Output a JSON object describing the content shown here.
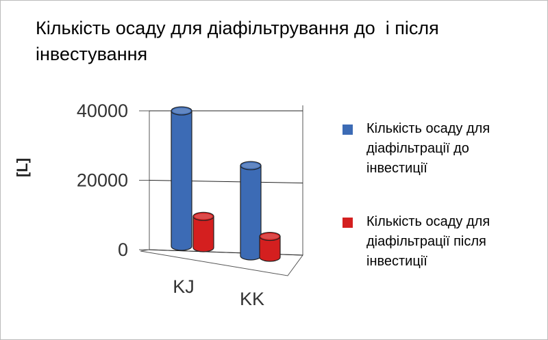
{
  "chart_data": {
    "type": "bar3d",
    "title": "Кількість осаду для діафільтрування до  і після інвестування",
    "y_label": "[L]",
    "categories": [
      "KJ",
      "KK"
    ],
    "series": [
      {
        "name": "Кількість осаду для діафільтрації до інвестиції",
        "color": "#3c6bb5",
        "values": [
          39000,
          26000
        ]
      },
      {
        "name": "Кількість осаду для діафільтрації після інвестиції",
        "color": "#d41f1f",
        "values": [
          9000,
          6000
        ]
      }
    ],
    "ylim": [
      0,
      40000
    ],
    "yticks": [
      0,
      20000,
      40000
    ],
    "grid": true
  }
}
